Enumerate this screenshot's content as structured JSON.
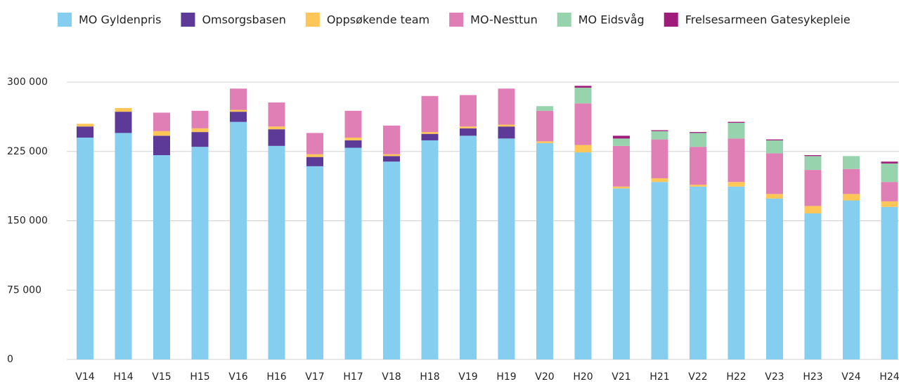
{
  "chart_data": {
    "type": "stacked_bar",
    "categories": [
      "V14",
      "H14",
      "V15",
      "H15",
      "V16",
      "H16",
      "V17",
      "H17",
      "V18",
      "H18",
      "V19",
      "H19",
      "V20",
      "H20",
      "V21",
      "H21",
      "V22",
      "H22",
      "V23",
      "H23",
      "V24",
      "H24"
    ],
    "series": [
      {
        "name": "MO Gyldenpris",
        "color": "#86cef0",
        "values": [
          240000,
          245000,
          221000,
          230000,
          257000,
          231000,
          209000,
          229000,
          214000,
          237000,
          242000,
          239000,
          234000,
          224000,
          185000,
          192000,
          187000,
          187000,
          174000,
          158000,
          172000,
          165000
        ]
      },
      {
        "name": "Omsorgsbasen",
        "color": "#5e3a98",
        "values": [
          12000,
          23000,
          21000,
          16000,
          11000,
          18000,
          10000,
          8000,
          6000,
          7000,
          8000,
          13000,
          0,
          0,
          0,
          0,
          0,
          0,
          0,
          0,
          0,
          0
        ]
      },
      {
        "name": "Oppsøkende team",
        "color": "#fdc656",
        "values": [
          3000,
          4000,
          5000,
          4000,
          2000,
          3000,
          3000,
          3000,
          2000,
          2000,
          2000,
          2000,
          2000,
          8000,
          2000,
          4000,
          2000,
          5000,
          5000,
          8000,
          7000,
          6000
        ]
      },
      {
        "name": "MO-Nesttun",
        "color": "#e07fb6",
        "values": [
          0,
          0,
          20000,
          19000,
          23000,
          26000,
          23000,
          29000,
          31000,
          39000,
          34000,
          39000,
          33000,
          45000,
          44000,
          42000,
          41000,
          47000,
          44000,
          39000,
          27000,
          21000
        ]
      },
      {
        "name": "MO Eidsvåg",
        "color": "#97d3ac",
        "values": [
          0,
          0,
          0,
          0,
          0,
          0,
          0,
          0,
          0,
          0,
          0,
          0,
          5000,
          17000,
          8000,
          9000,
          15000,
          17000,
          14000,
          15000,
          14000,
          20000
        ]
      },
      {
        "name": "Frelsesarmeen Gatesykepleie",
        "color": "#a01c7a",
        "values": [
          0,
          0,
          0,
          0,
          0,
          0,
          0,
          0,
          0,
          0,
          0,
          0,
          0,
          2000,
          3000,
          1000,
          1000,
          1000,
          1000,
          1000,
          0,
          2000
        ]
      }
    ],
    "ylim": [
      0,
      300000
    ],
    "yticks": [
      0,
      {
        "value": 75000,
        "label": "75 000"
      },
      {
        "value": 150000,
        "label": "150 000"
      },
      {
        "value": 225000,
        "label": "225 000"
      },
      {
        "value": 300000,
        "label": "300 000"
      }
    ],
    "grid": true,
    "legend": "top"
  }
}
